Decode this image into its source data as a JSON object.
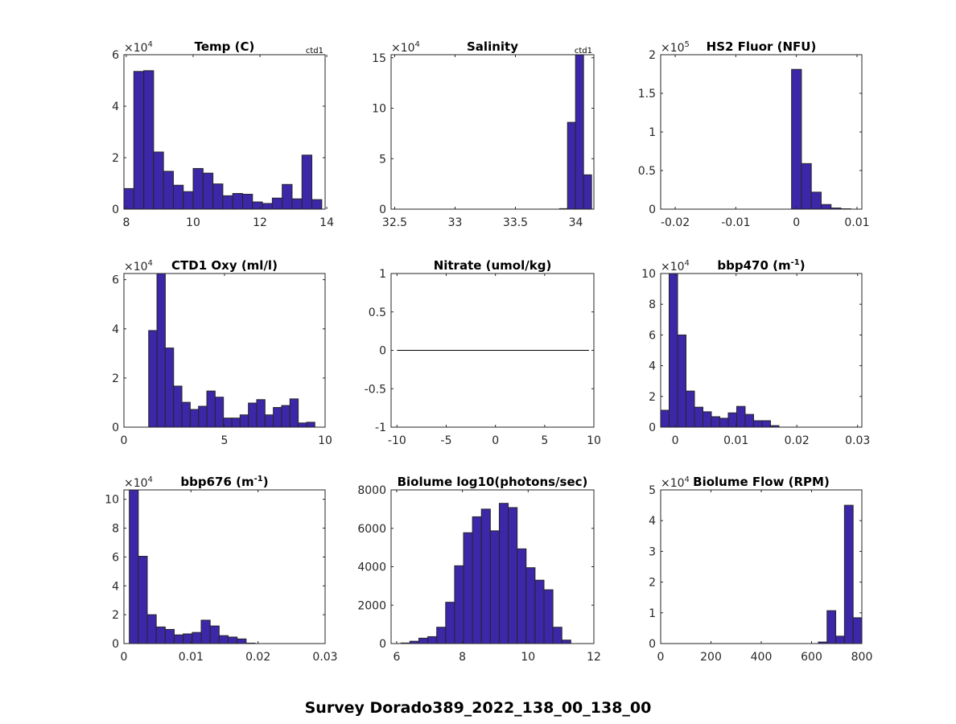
{
  "figure": {
    "suptitle": "Survey Dorado389_2022_138_00_138_00",
    "bar_color": "#3b27a8",
    "edge_color": "#262626"
  },
  "chart_data": [
    {
      "type": "bar",
      "title": "Temp (C)",
      "corner_label": "ctd1",
      "exponent": "4",
      "xlim": [
        7.93,
        13.95
      ],
      "ylim": [
        0,
        6
      ],
      "xticks": [
        8,
        10,
        12,
        14
      ],
      "yticks": [
        0,
        2,
        4,
        6
      ],
      "bin_start": 7.93,
      "bin_width": 0.296,
      "values": [
        0.8,
        5.35,
        5.38,
        2.22,
        1.47,
        0.93,
        0.68,
        1.58,
        1.4,
        0.98,
        0.52,
        0.61,
        0.58,
        0.28,
        0.22,
        0.43,
        0.96,
        0.4,
        2.1,
        0.37
      ]
    },
    {
      "type": "bar",
      "title": "Salinity",
      "corner_label": "ctd1",
      "exponent": "4",
      "xlim": [
        32.47,
        34.15
      ],
      "ylim": [
        0,
        15.3
      ],
      "xticks": [
        32.5,
        33,
        33.5,
        34
      ],
      "yticks": [
        0,
        5,
        10,
        15
      ],
      "bin_start": 33.865,
      "bin_width": 0.0665,
      "values": [
        0.05,
        8.6,
        15.3,
        3.4
      ]
    },
    {
      "type": "bar",
      "title": "HS2 Fluor (NFU)",
      "exponent": "5",
      "xlim": [
        -0.0224,
        0.0108
      ],
      "ylim": [
        0,
        2
      ],
      "xticks": [
        -0.02,
        -0.01,
        0,
        0.01
      ],
      "yticks": [
        0,
        0.5,
        1,
        1.5,
        2
      ],
      "bin_start": -0.0008,
      "bin_width": 0.00163,
      "values": [
        1.81,
        0.59,
        0.22,
        0.06,
        0.015,
        0.005
      ]
    },
    {
      "type": "bar",
      "title": "CTD1 Oxy (ml/l)",
      "exponent": "4",
      "xlim": [
        0,
        10
      ],
      "ylim": [
        0,
        6.25
      ],
      "xticks": [
        0,
        5,
        10
      ],
      "yticks": [
        0,
        2,
        4,
        6
      ],
      "bin_start": 1.23,
      "bin_width": 0.413,
      "values": [
        3.93,
        6.3,
        3.22,
        1.67,
        1.01,
        0.72,
        0.85,
        1.47,
        1.22,
        0.37,
        0.37,
        0.5,
        0.98,
        1.12,
        0.5,
        0.8,
        0.88,
        1.15,
        0.17,
        0.2
      ]
    },
    {
      "type": "line",
      "title": "Nitrate (umol/kg)",
      "exponent": "",
      "xlim": [
        -10.6,
        10
      ],
      "ylim": [
        -1,
        1
      ],
      "xticks": [
        -10,
        -5,
        0,
        5,
        10
      ],
      "yticks": [
        -1,
        -0.5,
        0,
        0.5,
        1
      ],
      "line_x": [
        -10,
        9.5
      ],
      "line_y": [
        0,
        0
      ]
    },
    {
      "type": "bar",
      "title": "bbp470 (m",
      "title_sup": "-1",
      "title_end": ")",
      "exponent": "4",
      "xlim": [
        -0.0024,
        0.0307
      ],
      "ylim": [
        0,
        10
      ],
      "xticks": [
        0,
        0.01,
        0.02,
        0.03
      ],
      "yticks": [
        0,
        2,
        4,
        6,
        8,
        10
      ],
      "bin_start": -0.0024,
      "bin_width": 0.00139,
      "values": [
        1.1,
        10.2,
        6.0,
        2.35,
        1.3,
        1.0,
        0.68,
        0.58,
        0.93,
        1.35,
        0.83,
        0.42,
        0.42,
        0.1
      ]
    },
    {
      "type": "bar",
      "title": "bbp676 (m",
      "title_sup": "-1",
      "title_end": ")",
      "exponent": "4",
      "xlim": [
        0,
        0.03
      ],
      "ylim": [
        0,
        10.65
      ],
      "xticks": [
        0,
        0.01,
        0.02,
        0.03
      ],
      "yticks": [
        0,
        2,
        4,
        6,
        8,
        10
      ],
      "bin_start": 0.0008,
      "bin_width": 0.00134,
      "values": [
        10.8,
        6.05,
        2.0,
        1.15,
        0.98,
        0.6,
        0.67,
        0.77,
        1.62,
        1.22,
        0.55,
        0.45,
        0.32,
        0.03
      ]
    },
    {
      "type": "bar",
      "title": "Biolume log10(photons/sec)",
      "exponent": "",
      "xlim": [
        5.83,
        12
      ],
      "ylim": [
        0,
        8000
      ],
      "xticks": [
        6,
        8,
        10,
        12
      ],
      "yticks": [
        0,
        2000,
        4000,
        6000,
        8000
      ],
      "bin_start": 6.13,
      "bin_width": 0.272,
      "values": [
        30,
        120,
        280,
        360,
        850,
        2150,
        4050,
        5770,
        6600,
        7000,
        5870,
        7300,
        7080,
        4930,
        3950,
        3300,
        2800,
        850,
        180
      ]
    },
    {
      "type": "bar",
      "title": "Biolume Flow (RPM)",
      "exponent": "4",
      "xlim": [
        0,
        800
      ],
      "ylim": [
        0,
        5
      ],
      "xticks": [
        0,
        200,
        400,
        600,
        800
      ],
      "yticks": [
        0,
        1,
        2,
        3,
        4,
        5
      ],
      "bin_start": 627,
      "bin_width": 34.6,
      "values": [
        0.05,
        1.07,
        0.24,
        4.5,
        0.84
      ]
    }
  ]
}
